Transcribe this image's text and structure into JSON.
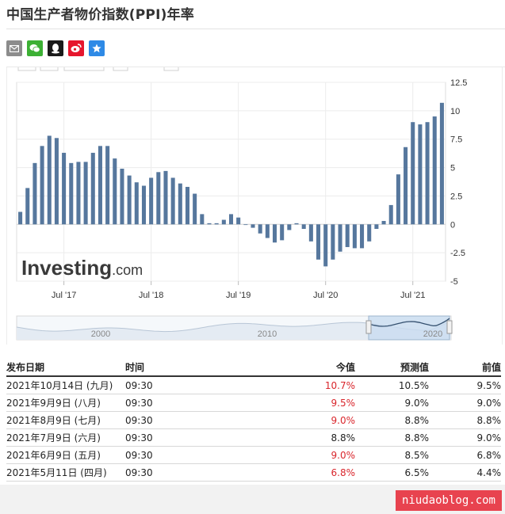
{
  "page": {
    "title": "中国生产者物价指数(PPI)年率"
  },
  "share": {
    "icons": [
      {
        "name": "email-share-icon",
        "color": "#8c8c8c"
      },
      {
        "name": "wechat-share-icon",
        "color": "#3cb034"
      },
      {
        "name": "qq-share-icon",
        "color": "#1a1a1a"
      },
      {
        "name": "weibo-share-icon",
        "color": "#e6162d"
      },
      {
        "name": "favorite-share-icon",
        "color": "#2e8ae6"
      }
    ]
  },
  "chart_data": {
    "type": "bar",
    "color": "#56779d",
    "ylim": [
      -5,
      12.5
    ],
    "yticks": [
      "12.5",
      "10",
      "7.5",
      "5",
      "2.5",
      "0",
      "-2.5",
      "-5"
    ],
    "xticks": [
      "Jul '17",
      "Jul '18",
      "Jul '19",
      "Jul '20",
      "Jul '21"
    ],
    "brand": "Investing.com",
    "grid": true,
    "y_axis_side": "right",
    "values": [
      1.1,
      3.2,
      5.4,
      6.9,
      7.8,
      7.6,
      6.3,
      5.4,
      5.5,
      5.5,
      6.3,
      6.9,
      6.9,
      5.8,
      4.9,
      4.3,
      3.7,
      3.4,
      4.1,
      4.6,
      4.7,
      4.1,
      3.6,
      3.3,
      2.7,
      0.9,
      0.1,
      0.1,
      0.4,
      0.9,
      0.6,
      0.0,
      -0.3,
      -0.8,
      -1.2,
      -1.6,
      -1.4,
      -0.5,
      0.1,
      -0.4,
      -1.5,
      -3.1,
      -3.7,
      -3.1,
      -2.4,
      -2.0,
      -2.1,
      -2.1,
      -1.5,
      -0.4,
      0.3,
      1.7,
      4.4,
      6.8,
      9.0,
      8.8,
      9.0,
      9.5,
      10.7
    ],
    "navigator": {
      "labels": [
        "2000",
        "2010",
        "2020"
      ]
    }
  },
  "table": {
    "headers": [
      "发布日期",
      "时间",
      "今值",
      "预测值",
      "前值"
    ],
    "rows": [
      {
        "date": "2021年10月14日 (九月)",
        "time": "09:30",
        "actual": "10.7%",
        "actual_color": "red",
        "forecast": "10.5%",
        "previous": "9.5%"
      },
      {
        "date": "2021年9月9日 (八月)",
        "time": "09:30",
        "actual": "9.5%",
        "actual_color": "red",
        "forecast": "9.0%",
        "previous": "9.0%"
      },
      {
        "date": "2021年8月9日 (七月)",
        "time": "09:30",
        "actual": "9.0%",
        "actual_color": "red",
        "forecast": "8.8%",
        "previous": "8.8%"
      },
      {
        "date": "2021年7月9日 (六月)",
        "time": "09:30",
        "actual": "8.8%",
        "actual_color": "black",
        "forecast": "8.8%",
        "previous": "9.0%"
      },
      {
        "date": "2021年6月9日 (五月)",
        "time": "09:30",
        "actual": "9.0%",
        "actual_color": "red",
        "forecast": "8.5%",
        "previous": "6.8%"
      },
      {
        "date": "2021年5月11日 (四月)",
        "time": "09:30",
        "actual": "6.8%",
        "actual_color": "red",
        "forecast": "6.5%",
        "previous": "4.4%"
      }
    ]
  },
  "watermark": {
    "text": "niudaoblog.com"
  }
}
